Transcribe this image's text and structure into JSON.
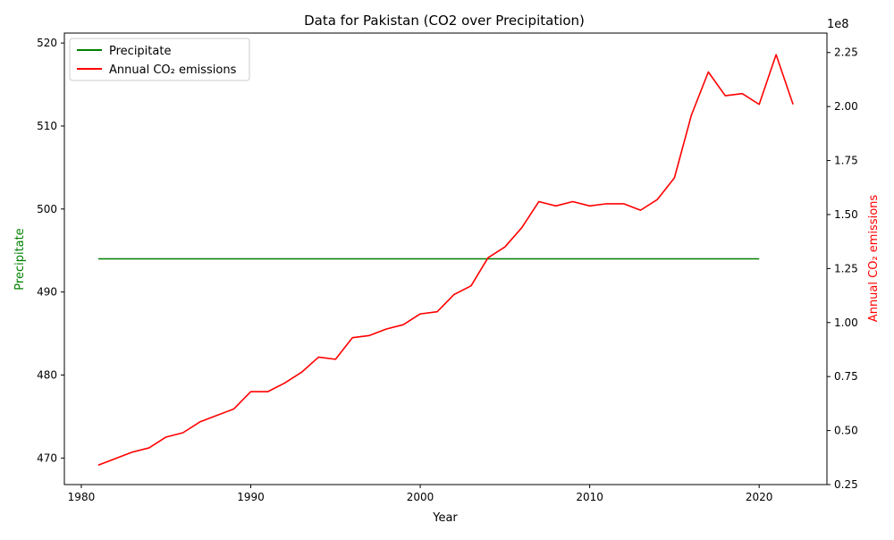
{
  "chart_data": {
    "type": "line",
    "title": "Data for Pakistan (CO2 over Precipitation)",
    "xlabel": "Year",
    "ylabel_left": "Precipitate",
    "ylabel_right": "Annual CO₂ emissions",
    "right_axis_multiplier": "1e8",
    "xlim": [
      1979,
      2024
    ],
    "ylim_left": [
      466.8,
      521.2
    ],
    "ylim_right": [
      0.25,
      2.34
    ],
    "x_ticks": [
      1980,
      1990,
      2000,
      2010,
      2020
    ],
    "y_left_ticks": [
      470,
      480,
      490,
      500,
      510,
      520
    ],
    "y_right_ticks": [
      "0.25",
      "0.50",
      "0.75",
      "1.00",
      "1.25",
      "1.50",
      "1.75",
      "2.00",
      "2.25"
    ],
    "legend_position": "top-left",
    "series": [
      {
        "name": "Precipitate",
        "axis": "left",
        "color": "#008000",
        "x": [
          1981,
          2020
        ],
        "values": [
          494,
          494
        ]
      },
      {
        "name": "Annual CO₂ emissions",
        "axis": "right",
        "color": "#ff0000",
        "unit_scale": "1e8",
        "x": [
          1981,
          1982,
          1983,
          1984,
          1985,
          1986,
          1987,
          1988,
          1989,
          1990,
          1991,
          1992,
          1993,
          1994,
          1995,
          1996,
          1997,
          1998,
          1999,
          2000,
          2001,
          2002,
          2003,
          2004,
          2005,
          2006,
          2007,
          2008,
          2009,
          2010,
          2011,
          2012,
          2013,
          2014,
          2015,
          2016,
          2017,
          2018,
          2019,
          2020,
          2021,
          2022
        ],
        "values": [
          0.34,
          0.37,
          0.4,
          0.42,
          0.47,
          0.49,
          0.54,
          0.57,
          0.6,
          0.68,
          0.68,
          0.72,
          0.77,
          0.84,
          0.83,
          0.93,
          0.94,
          0.97,
          0.99,
          1.04,
          1.05,
          1.13,
          1.17,
          1.3,
          1.35,
          1.44,
          1.56,
          1.54,
          1.56,
          1.54,
          1.55,
          1.55,
          1.52,
          1.57,
          1.67,
          1.96,
          2.16,
          2.05,
          2.06,
          2.01,
          2.24,
          2.01
        ]
      }
    ]
  }
}
